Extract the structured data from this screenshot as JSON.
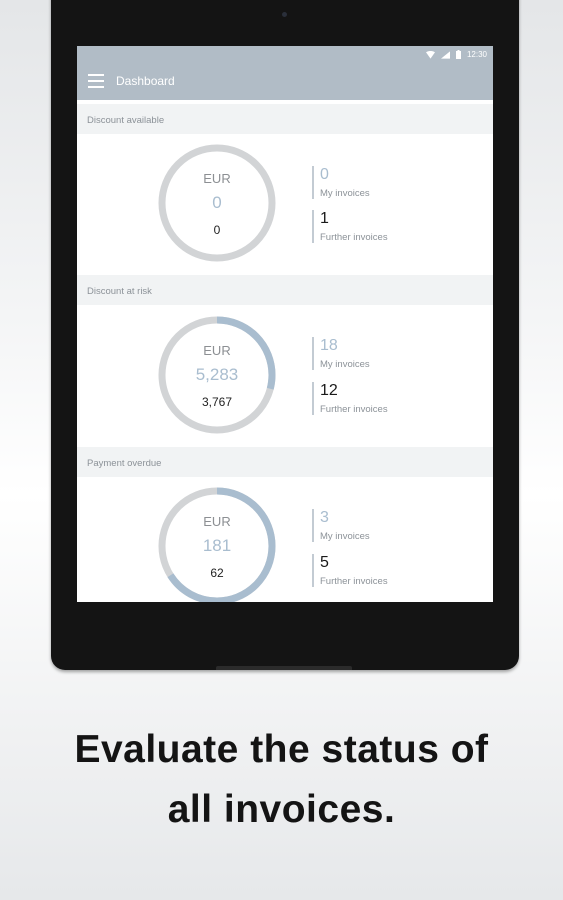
{
  "status_bar": {
    "time": "12:30"
  },
  "app_bar": {
    "title": "Dashboard"
  },
  "sections": [
    {
      "header": "Discount available",
      "currency": "EUR",
      "amount": "0",
      "sub_amount": "0",
      "ring_fraction": 0,
      "my_invoices": "0",
      "my_invoices_label": "My invoices",
      "further_invoices": "1",
      "further_invoices_label": "Further invoices"
    },
    {
      "header": "Discount at risk",
      "currency": "EUR",
      "amount": "5,283",
      "sub_amount": "3,767",
      "ring_fraction": 0.29,
      "my_invoices": "18",
      "my_invoices_label": "My invoices",
      "further_invoices": "12",
      "further_invoices_label": "Further invoices"
    },
    {
      "header": "Payment overdue",
      "currency": "EUR",
      "amount": "181",
      "sub_amount": "62",
      "ring_fraction": 0.66,
      "my_invoices": "3",
      "my_invoices_label": "My invoices",
      "further_invoices": "5",
      "further_invoices_label": "Further invoices"
    }
  ],
  "colors": {
    "accent": "#a9bdcf",
    "ring_track": "#d2d4d6",
    "app_bar": "#b1bcc6"
  },
  "caption": {
    "line1": "Evaluate the status of",
    "line2": "all invoices."
  }
}
